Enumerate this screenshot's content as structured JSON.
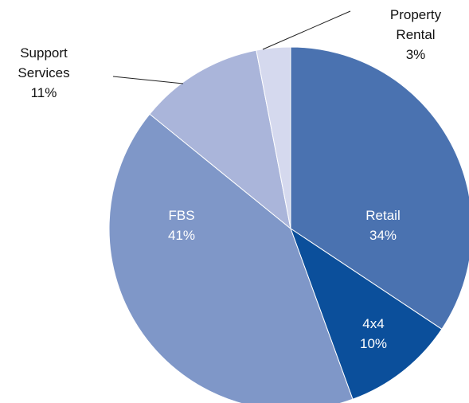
{
  "chart_data": {
    "type": "pie",
    "categories": [
      "Retail",
      "4x4",
      "FBS",
      "Support Services",
      "Property Rental"
    ],
    "values": [
      34,
      10,
      41,
      11,
      3
    ],
    "value_labels": [
      "34%",
      "10%",
      "41%",
      "11%",
      "3%"
    ],
    "colors": [
      "#4a72b0",
      "#0b4f9b",
      "#7f97c8",
      "#aab5da",
      "#d5d9ee"
    ]
  }
}
